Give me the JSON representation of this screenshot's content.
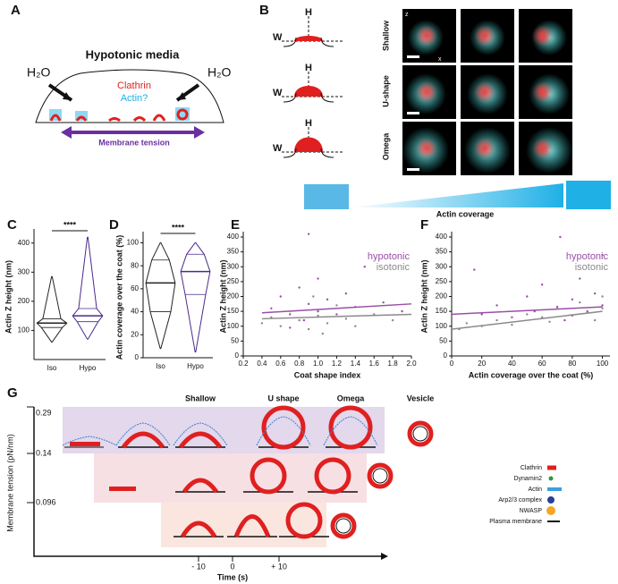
{
  "panel_labels": [
    "A",
    "B",
    "C",
    "D",
    "E",
    "F",
    "G"
  ],
  "panel_a": {
    "title": "Hypotonic media",
    "water": [
      "H₂O",
      "H₂O"
    ],
    "clathrin": "Clathrin",
    "actin": "Actin?",
    "tension": "Membrane tension"
  },
  "panel_b": {
    "rows": [
      "Shallow",
      "U-shape",
      "Omega"
    ],
    "w_label": [
      "W",
      "W",
      "W"
    ],
    "h_label": [
      "H",
      "H",
      "H"
    ],
    "axis_z": "z",
    "axis_x": "x",
    "coverage": "Actin coverage"
  },
  "chart_data": [
    {
      "type": "violin",
      "ylabel": "Actin Z height (nm)",
      "categories": [
        "Iso",
        "Hypo"
      ],
      "colors": [
        "#222222",
        "#4b2a8a"
      ],
      "min": [
        60,
        70
      ],
      "q1": [
        110,
        130
      ],
      "median": [
        125,
        150
      ],
      "q3": [
        140,
        175
      ],
      "max": [
        285,
        420
      ],
      "ylim": [
        0,
        430
      ],
      "yticks": [
        100,
        200,
        300,
        400
      ],
      "annotation": "****"
    },
    {
      "type": "violin",
      "ylabel": "Actin coverage over the coat (%)",
      "categories": [
        "Iso",
        "Hypo"
      ],
      "colors": [
        "#222222",
        "#4b2a8a"
      ],
      "min": [
        8,
        5
      ],
      "q1": [
        40,
        55
      ],
      "median": [
        65,
        75
      ],
      "q3": [
        85,
        90
      ],
      "max": [
        100,
        100
      ],
      "ylim": [
        0,
        105
      ],
      "yticks": [
        0,
        20,
        40,
        60,
        80,
        100
      ],
      "annotation": "****"
    },
    {
      "type": "scatter",
      "xlabel": "Coat shape index",
      "ylabel": "Actin Z height (nm)",
      "xlim": [
        0.2,
        2.0
      ],
      "xticks": [
        0.2,
        0.4,
        0.6,
        0.8,
        {
          "value": 1,
          "label": "1.0"
        },
        1.2,
        1.4,
        1.6,
        1.8,
        {
          "value": 2,
          "label": "2.0"
        }
      ],
      "ylim": [
        0,
        400
      ],
      "yticks": [
        0,
        50,
        100,
        150,
        200,
        250,
        300,
        350,
        400
      ],
      "series": [
        {
          "name": "hypotonic",
          "color": "#9a4ea8",
          "x": [
            0.5,
            0.6,
            0.7,
            0.8,
            0.85,
            0.9,
            1.0,
            1.0,
            1.1,
            1.2,
            1.3,
            1.4,
            1.5,
            1.7,
            1.9,
            0.9,
            0.7
          ],
          "values": [
            160,
            200,
            140,
            230,
            120,
            175,
            150,
            260,
            190,
            140,
            210,
            165,
            300,
            180,
            150,
            410,
            95
          ],
          "fit_x": [
            0.4,
            2.0
          ],
          "fit_values": [
            145,
            175
          ]
        },
        {
          "name": "isotonic",
          "color": "#8a8a8a",
          "x": [
            0.4,
            0.5,
            0.6,
            0.7,
            0.8,
            0.9,
            1.0,
            1.1,
            1.2,
            1.3,
            1.4,
            1.6,
            1.8,
            0.95,
            1.05
          ],
          "values": [
            110,
            130,
            100,
            150,
            120,
            90,
            135,
            110,
            170,
            125,
            100,
            140,
            120,
            200,
            75
          ],
          "fit_x": [
            0.4,
            2.0
          ],
          "fit_values": [
            125,
            140
          ]
        }
      ]
    },
    {
      "type": "scatter",
      "xlabel": "Actin coverage over the coat (%)",
      "ylabel": "Actin Z height (nm)",
      "xlim": [
        0,
        105
      ],
      "xticks": [
        0,
        20,
        40,
        60,
        80,
        100
      ],
      "ylim": [
        0,
        400
      ],
      "yticks": [
        0,
        50,
        100,
        150,
        200,
        250,
        300,
        350,
        400
      ],
      "series": [
        {
          "name": "hypotonic",
          "color": "#9a4ea8",
          "x": [
            15,
            20,
            30,
            40,
            50,
            55,
            60,
            70,
            75,
            80,
            85,
            90,
            95,
            100,
            100,
            72
          ],
          "values": [
            290,
            140,
            170,
            130,
            200,
            150,
            240,
            165,
            120,
            190,
            260,
            150,
            210,
            340,
            170,
            400
          ],
          "fit_x": [
            0,
            100
          ],
          "fit_values": [
            140,
            165
          ]
        },
        {
          "name": "isotonic",
          "color": "#8a8a8a",
          "x": [
            5,
            10,
            20,
            30,
            40,
            50,
            60,
            65,
            70,
            80,
            85,
            90,
            95,
            100,
            100
          ],
          "values": [
            90,
            110,
            100,
            120,
            105,
            140,
            130,
            115,
            160,
            135,
            180,
            145,
            120,
            200,
            160
          ],
          "fit_x": [
            0,
            100
          ],
          "fit_values": [
            90,
            150
          ]
        }
      ]
    }
  ],
  "panel_g": {
    "stages": [
      "Shallow",
      "U shape",
      "Omega",
      "Vesicle"
    ],
    "y_label": "Membrane tension (pN/nm)",
    "y_ticks": [
      "0.29",
      "0.14",
      "0.096"
    ],
    "x_label": "Time (s)",
    "x_ticks": [
      "- 10",
      "0",
      "+ 10"
    ],
    "legend": [
      "Clathrin",
      "Dynamin2",
      "Actin",
      "Arp2/3 complex",
      "NWASP",
      "Plasma membrane"
    ]
  }
}
